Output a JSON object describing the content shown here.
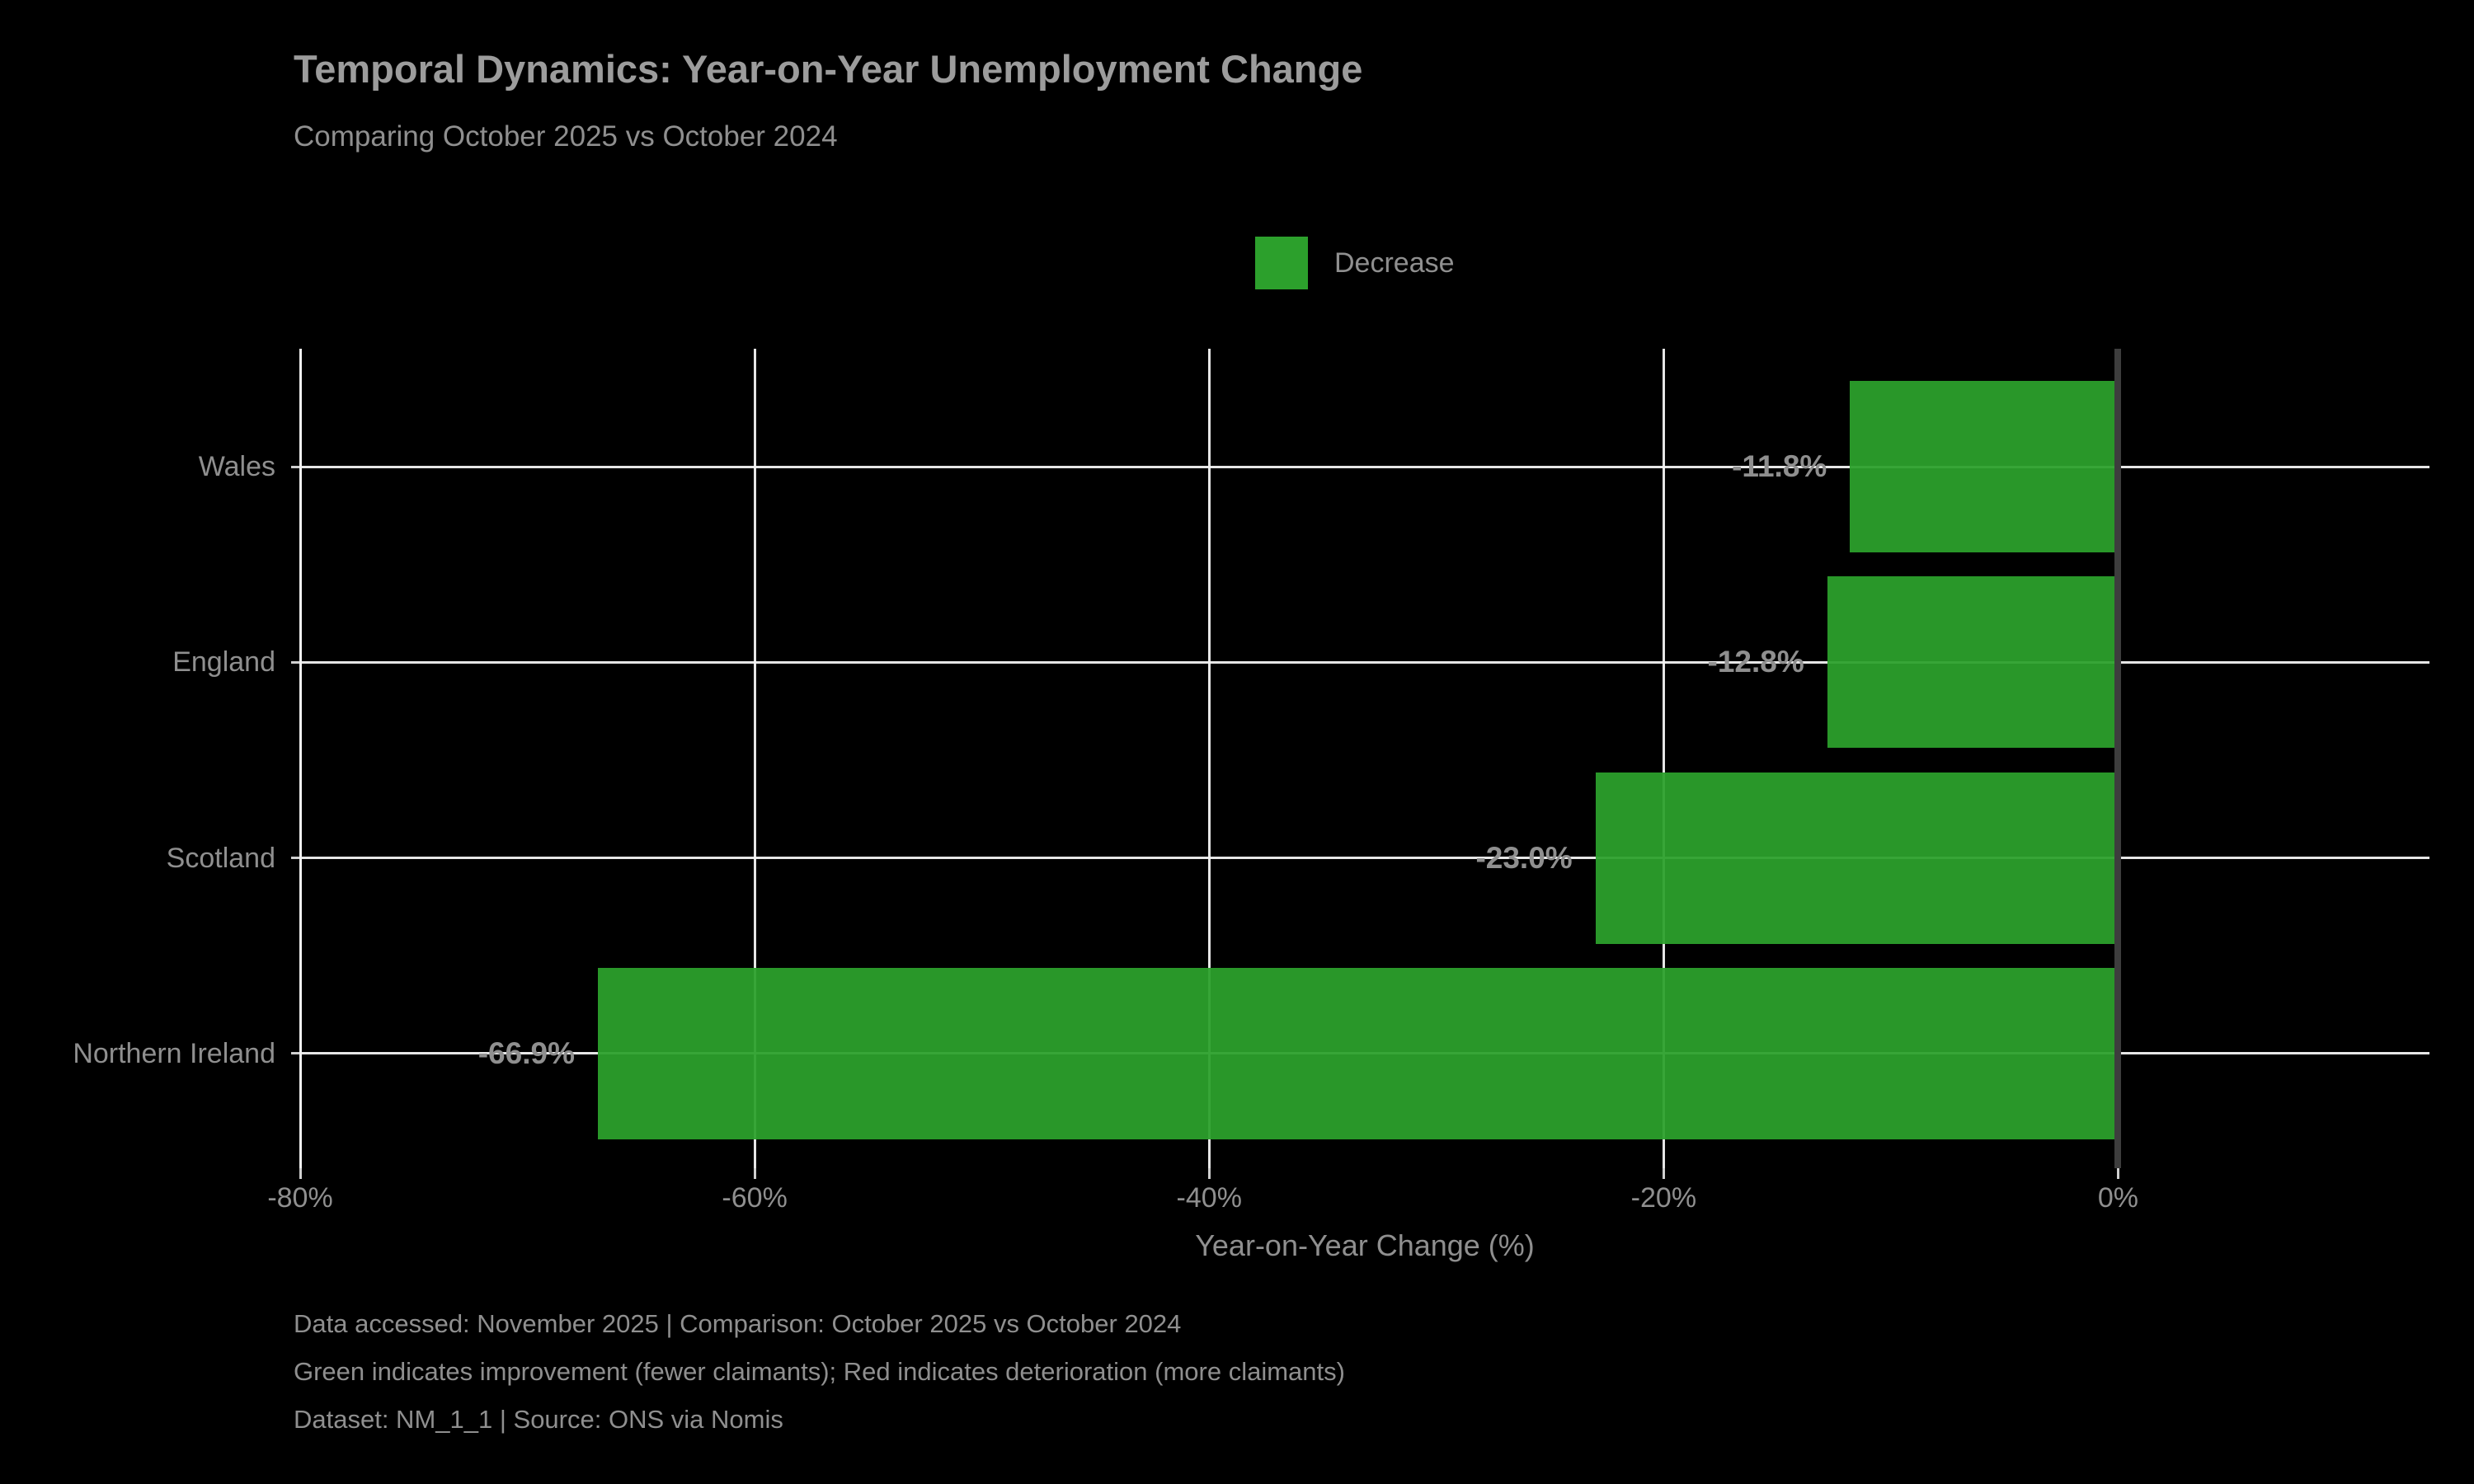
{
  "title": "Temporal Dynamics: Year-on-Year Unemployment Change",
  "subtitle": "Comparing October 2025 vs October 2024",
  "legend": {
    "label": "Decrease",
    "color": "#2ca02c"
  },
  "chart_data": {
    "type": "bar",
    "orientation": "horizontal",
    "title": "Temporal Dynamics: Year-on-Year Unemployment Change",
    "subtitle": "Comparing October 2025 vs October 2024",
    "categories": [
      "Wales",
      "England",
      "Scotland",
      "Northern Ireland"
    ],
    "values": [
      -11.8,
      -12.8,
      -23.0,
      -66.9
    ],
    "bar_labels": [
      "-11.8%",
      "-12.8%",
      "-23.0%",
      "-66.9%"
    ],
    "bar_color": "#2ca02c",
    "xlabel": "Year-on-Year Change (%)",
    "xticks": [
      -80,
      -60,
      -40,
      -20,
      0
    ],
    "xtick_labels": [
      "-80%",
      "-60%",
      "-40%",
      "-20%",
      "0%"
    ],
    "xlim": [
      -80,
      13.7
    ],
    "grid": true,
    "legend_entries": [
      "Decrease"
    ],
    "legend_position": "upper center",
    "zero_line": 0
  },
  "footer": {
    "line1": "Data accessed: November 2025 | Comparison: October 2025 vs October 2024",
    "line2": "Green indicates improvement (fewer claimants); Red indicates deterioration (more claimants)",
    "line3": "Dataset: NM_1_1 | Source: ONS via Nomis"
  },
  "colors": {
    "background": "#000000",
    "bar_green": "#2ca02c",
    "grid": "#f2f2f2",
    "zero_line": "#3d3d3d",
    "text": "#8f8f8f",
    "title_text": "#9c9c9c"
  }
}
